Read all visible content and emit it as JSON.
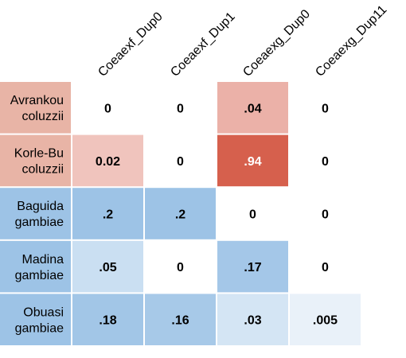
{
  "chart_data": {
    "type": "heatmap",
    "title": "",
    "xlabel": "",
    "ylabel": "",
    "columns": [
      "Coeaexf_Dup0",
      "Coeaexf_Dup1",
      "Coeaexg_Dup0",
      "Coeaexg_Dup11"
    ],
    "rows": [
      {
        "label_line1": "Avrankou",
        "label_line2": "coluzzii",
        "group": "coluzzii"
      },
      {
        "label_line1": "Korle-Bu",
        "label_line2": "coluzzii",
        "group": "coluzzii"
      },
      {
        "label_line1": "Baguida",
        "label_line2": "gambiae",
        "group": "gambiae"
      },
      {
        "label_line1": "Madina",
        "label_line2": "gambiae",
        "group": "gambiae"
      },
      {
        "label_line1": "Obuasi",
        "label_line2": "gambiae",
        "group": "gambiae"
      }
    ],
    "values": [
      [
        0,
        0,
        0.04,
        0
      ],
      [
        0.02,
        0,
        0.94,
        0
      ],
      [
        0.2,
        0.2,
        0,
        0
      ],
      [
        0.05,
        0,
        0.17,
        0
      ],
      [
        0.18,
        0.16,
        0.03,
        0.005
      ]
    ],
    "value_labels": [
      [
        "0",
        "0",
        ".04",
        "0"
      ],
      [
        "0.02",
        "0",
        ".94",
        "0"
      ],
      [
        ".2",
        ".2",
        "0",
        "0"
      ],
      [
        ".05",
        "0",
        ".17",
        "0"
      ],
      [
        ".18",
        ".16",
        ".03",
        ".005"
      ]
    ],
    "group_colors": {
      "coluzzii": "#d6604d",
      "gambiae": "#9dc3e6"
    },
    "row_label_colors": {
      "coluzzii": "#e8b4a6",
      "gambiae": "#9dc3e6"
    }
  }
}
